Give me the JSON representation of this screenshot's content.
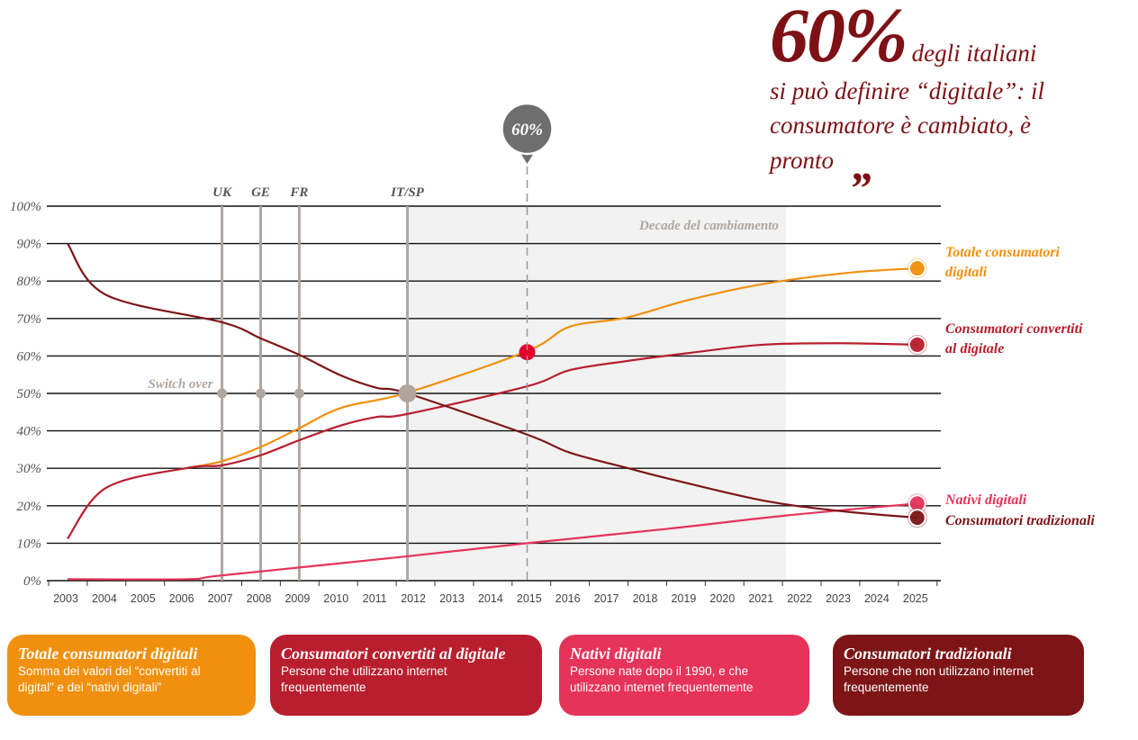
{
  "quote": {
    "big": "60%",
    "line1": "degli italiani",
    "line2": "si può definire “digitale”: il",
    "line3": "consumatore è cambiato, è",
    "line4": "pronto",
    "close_mark": "„",
    "color": "#7D1116"
  },
  "chart_data": {
    "type": "line",
    "ylim": [
      0,
      100
    ],
    "xlim": [
      2003,
      2025
    ],
    "y_ticks": [
      "0%",
      "10%",
      "20%",
      "30%",
      "40%",
      "50%",
      "60%",
      "70%",
      "80%",
      "90%",
      "100%"
    ],
    "x_ticks": [
      "2003",
      "2004",
      "2005",
      "2006",
      "2007",
      "2008",
      "2009",
      "2010",
      "2011",
      "2012",
      "2013",
      "2014",
      "2015",
      "2016",
      "2017",
      "2018",
      "2019",
      "2020",
      "2021",
      "2022",
      "2023",
      "2024",
      "2025"
    ],
    "grid": "horizontal",
    "shaded_region": {
      "label": "Decade del cambiamento",
      "from": 2011.8,
      "to": 2021.6,
      "color": "#F2F2F2"
    },
    "milestones": [
      {
        "label": "UK",
        "x": 2007
      },
      {
        "label": "GE",
        "x": 2008
      },
      {
        "label": "FR",
        "x": 2009
      },
      {
        "label": "IT/SP",
        "x": 2011.8
      }
    ],
    "switch_over": {
      "label": "Switch over",
      "y": 50
    },
    "highlight": {
      "label": "60%",
      "x": 2014.9,
      "y": 61,
      "color": "#E4002B"
    },
    "series": [
      {
        "name": "Totale consumatori digitali",
        "label_lines": [
          "Totale consumatori",
          "digitali"
        ],
        "color": "#F0900E",
        "points": [
          [
            2006.1,
            30.1
          ],
          [
            2007,
            31.9
          ],
          [
            2008,
            35.7
          ],
          [
            2009,
            40.7
          ],
          [
            2010.1,
            46.2
          ],
          [
            2011.8,
            50.2
          ],
          [
            2014.9,
            61.3
          ],
          [
            2016,
            67.8
          ],
          [
            2017.45,
            70.2
          ],
          [
            2019.1,
            75
          ],
          [
            2021,
            79.2
          ],
          [
            2023.2,
            82.2
          ],
          [
            2025,
            83.4
          ]
        ]
      },
      {
        "name": "Consumatori convertiti al digitale",
        "label_lines": [
          "Consumatori convertiti",
          "al digitale"
        ],
        "color": "#B81E2E",
        "points": [
          [
            2003,
            11.2
          ],
          [
            2004,
            24.8
          ],
          [
            2006.1,
            30.1
          ],
          [
            2007,
            30.8
          ],
          [
            2008,
            33.5
          ],
          [
            2009,
            37.5
          ],
          [
            2010.1,
            41.5
          ],
          [
            2011,
            43.7
          ],
          [
            2011.8,
            44.5
          ],
          [
            2014.9,
            51.9
          ],
          [
            2016,
            56.2
          ],
          [
            2017.45,
            58.6
          ],
          [
            2019.1,
            60.8
          ],
          [
            2021,
            63
          ],
          [
            2023,
            63.4
          ],
          [
            2025,
            63
          ]
        ]
      },
      {
        "name": "Nativi digitali",
        "label_lines": [
          "Nativi digitali"
        ],
        "color": "#E5335A",
        "points": [
          [
            2003,
            0.4
          ],
          [
            2006.1,
            0.4
          ],
          [
            2007,
            1.4
          ],
          [
            2011.8,
            6.5
          ],
          [
            2014.9,
            10
          ],
          [
            2018.5,
            13.8
          ],
          [
            2021.6,
            17.4
          ],
          [
            2025,
            20.6
          ]
        ]
      },
      {
        "name": "Consumatori tradizionali",
        "label_lines": [
          "Consumatori tradizionali"
        ],
        "color": "#7D1517",
        "points": [
          [
            2003,
            90
          ],
          [
            2004,
            76.3
          ],
          [
            2007,
            69
          ],
          [
            2008,
            64.7
          ],
          [
            2009,
            60.3
          ],
          [
            2010.1,
            54.7
          ],
          [
            2011,
            51.5
          ],
          [
            2011.8,
            50
          ],
          [
            2014.9,
            39
          ],
          [
            2016,
            34.2
          ],
          [
            2017.45,
            30.2
          ],
          [
            2018.5,
            27.4
          ],
          [
            2021,
            21.4
          ],
          [
            2023,
            18.6
          ],
          [
            2025,
            16.8
          ]
        ]
      }
    ]
  },
  "legend": [
    {
      "title": "Totale consumatori digitali",
      "desc_lines": [
        "Somma dei valori del “convertiti al",
        "digital” e dei “nativi digitali”"
      ],
      "color": "#F0900E"
    },
    {
      "title": "Consumatori convertiti al digitale",
      "desc_lines": [
        "Persone che utilizzano internet",
        "frequentemente"
      ],
      "color": "#B81E2E"
    },
    {
      "title": "Nativi digitali",
      "desc_lines": [
        "Persone nate dopo il 1990, e che",
        "utilizzano internet frequentemente"
      ],
      "color": "#E5335A"
    },
    {
      "title": "Consumatori tradizionali",
      "desc_lines": [
        "Persone che non utilizzano internet",
        "frequentemente"
      ],
      "color": "#7D1517"
    }
  ]
}
